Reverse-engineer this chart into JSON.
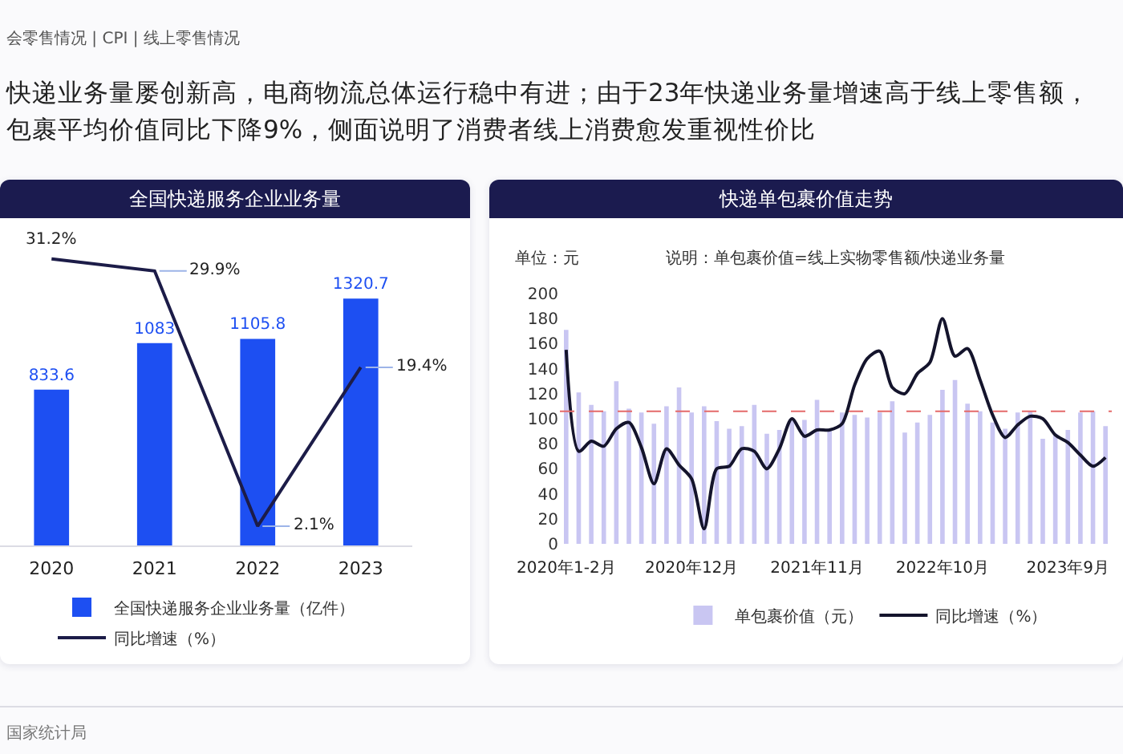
{
  "chart_data": [
    {
      "type": "bar",
      "title": "全国快递服务企业业务量",
      "categories": [
        "2020",
        "2021",
        "2022",
        "2023"
      ],
      "series": [
        {
          "name": "全国快递服务企业业务量（亿件）",
          "color": "#1d4ff2",
          "values": [
            833.6,
            1083,
            1105.8,
            1320.7
          ],
          "value_labels": [
            "833.6",
            "1083",
            "1105.8",
            "1320.7"
          ]
        },
        {
          "name": "同比增速（%）",
          "type": "line",
          "axis": "y2",
          "color": "#1c1c48",
          "values": [
            31.2,
            29.9,
            2.1,
            19.4
          ],
          "value_labels": [
            "31.2%",
            "29.9%",
            "2.1%",
            "19.4%"
          ]
        }
      ],
      "legend": "bottom",
      "tick_labels": "x",
      "annotations": [
        "会零售情况 | CPI | 线上零售情况",
        "快递业务量屡创新高，电商物流总体运行稳中有进；由于23年快递业务量增速高于线上零售额，",
        "包裹平均价值同比下降9%，侧面说明了消费者线上消费愈发重视性价比",
        "国家统计局"
      ]
    },
    {
      "type": "bar",
      "title": "快递单包裹价值走势",
      "ylabel": "单位：元",
      "annotations": [
        "说明：单包裹价值=线上实物零售额/快递业务量"
      ],
      "categories": [
        "2020年1-2月",
        null,
        null,
        null,
        null,
        null,
        null,
        null,
        null,
        null,
        "2020年12月",
        null,
        null,
        null,
        null,
        null,
        null,
        null,
        null,
        null,
        "2021年11月",
        null,
        null,
        null,
        null,
        null,
        null,
        null,
        null,
        null,
        "2022年10月",
        null,
        null,
        null,
        null,
        null,
        null,
        null,
        null,
        null,
        "2023年9月",
        null,
        null,
        null
      ],
      "series": [
        {
          "name": "单包裹价值（元）",
          "color": "#c9c6f2",
          "values": [
            171,
            121,
            111,
            106,
            130,
            108,
            105,
            96,
            110,
            125,
            105,
            110,
            98,
            92,
            94,
            111,
            88,
            91,
            99,
            99,
            115,
            92,
            105,
            103,
            101,
            105,
            114,
            89,
            97,
            103,
            123,
            131,
            112,
            106,
            97,
            92,
            105,
            106,
            84,
            88,
            91,
            105,
            106,
            94
          ]
        },
        {
          "name": "同比增速（%）",
          "type": "line",
          "color": "#14142c",
          "values": [
            155,
            74,
            82,
            78,
            92,
            97,
            77,
            48,
            76,
            63,
            52,
            12,
            60,
            62,
            76,
            74,
            60,
            76,
            100,
            86,
            91,
            91,
            96,
            127,
            148,
            154,
            125,
            120,
            136,
            145,
            180,
            150,
            156,
            131,
            103,
            85,
            95,
            102,
            100,
            87,
            81,
            71,
            62,
            69
          ]
        }
      ],
      "ylim": [
        0,
        200
      ],
      "yticks": [
        0,
        20,
        40,
        60,
        80,
        100,
        120,
        140,
        160,
        180,
        200
      ],
      "ref_lines": [
        {
          "axis": "y",
          "value": 106,
          "color": "#e46a6a",
          "line_style": "dashed"
        }
      ],
      "legend": "bottom"
    }
  ]
}
